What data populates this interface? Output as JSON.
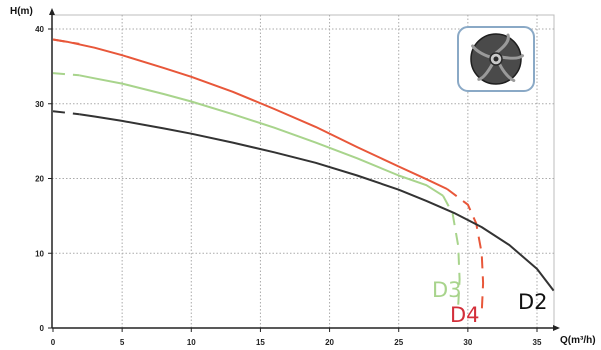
{
  "chart_data": {
    "type": "line",
    "xlabel": "Q(m³/h)",
    "ylabel": "H(m)",
    "xlim": [
      0,
      37
    ],
    "ylim": [
      0,
      40
    ],
    "x_ticks": [
      0,
      5,
      10,
      15,
      20,
      25,
      30,
      35
    ],
    "y_ticks": [
      0,
      10,
      20,
      30,
      40
    ],
    "grid": true,
    "series": [
      {
        "name": "D4",
        "color": "#e8573a",
        "points": [
          [
            0,
            38.6
          ],
          [
            1,
            38.3
          ],
          [
            3,
            37.5
          ],
          [
            5,
            36.5
          ],
          [
            8,
            34.8
          ],
          [
            10,
            33.6
          ],
          [
            13,
            31.6
          ],
          [
            16,
            29.3
          ],
          [
            19,
            26.9
          ],
          [
            22,
            24.2
          ],
          [
            25,
            21.6
          ],
          [
            27,
            19.9
          ],
          [
            28.5,
            18.6
          ]
        ],
        "dashed_start": [
          [
            0,
            38.6
          ],
          [
            1.9,
            38.0
          ]
        ],
        "dashed_end": [
          [
            28.5,
            18.6
          ],
          [
            30.0,
            16.5
          ],
          [
            30.6,
            14.0
          ],
          [
            31.0,
            10.0
          ],
          [
            31.1,
            6.0
          ],
          [
            31.0,
            2.0
          ]
        ]
      },
      {
        "name": "D3",
        "color": "#a8d48c",
        "points": [
          [
            1.9,
            33.8
          ],
          [
            3,
            33.4
          ],
          [
            5,
            32.7
          ],
          [
            8,
            31.3
          ],
          [
            10,
            30.3
          ],
          [
            13,
            28.6
          ],
          [
            16,
            26.8
          ],
          [
            19,
            24.8
          ],
          [
            22,
            22.7
          ],
          [
            25,
            20.4
          ],
          [
            27,
            19.1
          ],
          [
            28.2,
            17.7
          ]
        ],
        "dashed_start": [
          [
            0,
            34.1
          ],
          [
            1.9,
            33.8
          ]
        ],
        "dashed_end": [
          [
            28.2,
            17.7
          ],
          [
            28.9,
            15.3
          ],
          [
            29.3,
            11.0
          ],
          [
            29.4,
            6.5
          ],
          [
            29.3,
            3.0
          ]
        ]
      },
      {
        "name": "D2",
        "color": "#333333",
        "points": [
          [
            1.9,
            28.6
          ],
          [
            3,
            28.3
          ],
          [
            5,
            27.7
          ],
          [
            8,
            26.7
          ],
          [
            10,
            26.0
          ],
          [
            13,
            24.8
          ],
          [
            16,
            23.5
          ],
          [
            19,
            22.1
          ],
          [
            22,
            20.4
          ],
          [
            25,
            18.5
          ],
          [
            27,
            17.0
          ],
          [
            29,
            15.4
          ],
          [
            31,
            13.5
          ],
          [
            33,
            11.1
          ],
          [
            35,
            7.9
          ],
          [
            36.2,
            5.0
          ]
        ],
        "dashed_start": [
          [
            0,
            29.0
          ],
          [
            1.9,
            28.6
          ]
        ],
        "dashed_end": []
      }
    ]
  },
  "labels": {
    "d3": "D3",
    "d4": "D4",
    "d2": "D2",
    "colors": {
      "d3": "#a8d48c",
      "d4": "#d32f3a",
      "d2": "#111111"
    }
  },
  "image": {
    "name": "pump-impeller"
  }
}
